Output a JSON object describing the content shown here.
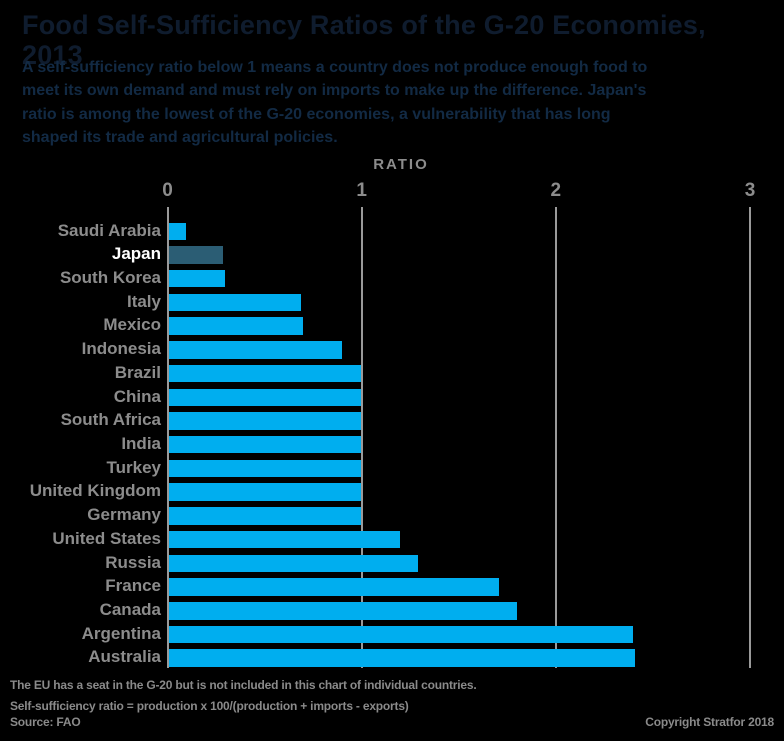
{
  "header": {
    "title": "Food Self-Sufficiency Ratios of the G-20 Economies, 2013",
    "subtitle_lines": [
      "A self-sufficiency ratio below 1 means a country does not produce enough food to",
      "meet its own demand and must rely on imports to make up the difference. Japan's",
      "ratio is among the lowest of the G-20 economies, a vulnerability that has long",
      "shaped its trade and agricultural policies."
    ]
  },
  "chart_data": {
    "type": "bar",
    "orientation": "horizontal",
    "xlabel": "RATIO",
    "xlim": [
      0,
      3
    ],
    "x_ticks": [
      0,
      1,
      2,
      3
    ],
    "grid": "vertical",
    "legend": "none",
    "categories": [
      "Saudi Arabia",
      "Japan",
      "South Korea",
      "Italy",
      "Mexico",
      "Indonesia",
      "Brazil",
      "China",
      "South Africa",
      "India",
      "Turkey",
      "United Kingdom",
      "Germany",
      "United States",
      "Russia",
      "France",
      "Canada",
      "Argentina",
      "Australia"
    ],
    "values": [
      0.09,
      0.28,
      0.29,
      0.68,
      0.69,
      0.89,
      0.99,
      0.99,
      0.99,
      0.99,
      0.99,
      0.99,
      0.99,
      1.19,
      1.28,
      1.7,
      1.79,
      2.39,
      2.4
    ],
    "highlighted_category": "Japan"
  },
  "footer": {
    "note1": "The EU has a seat in the G-20 but is not included in this chart of individual countries.",
    "note2": "Self-sufficiency ratio = production x 100/(production + imports - exports)",
    "source": "Source: FAO",
    "copyright": "Copyright Stratfor 2018"
  },
  "colors": {
    "background": "#000000",
    "bar": "#00AEEF",
    "bar_highlight": "#2B5D74",
    "title_text": "#0F1C2E",
    "subtitle_text": "#122A44",
    "axis_text": "#8C8C8C",
    "label_text": "#8C8C8C",
    "highlight_label_text": "#FFFFFF",
    "gridline": "#9A9A9A",
    "footer_text": "#8A8A8A"
  }
}
